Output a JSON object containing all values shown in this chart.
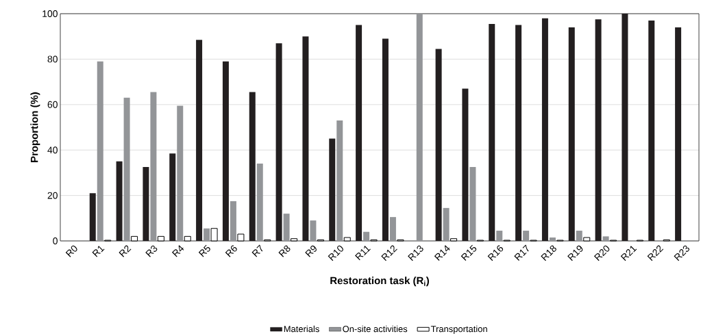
{
  "chart_data": {
    "type": "bar",
    "xlabel": "Restoration task (R$_{i}$)",
    "ylabel": "Proportion (%)",
    "categories": [
      "R0",
      "R1",
      "R2",
      "R3",
      "R4",
      "R5",
      "R6",
      "R7",
      "R8",
      "R9",
      "R10",
      "R11",
      "R12",
      "R13",
      "R14",
      "R15",
      "R16",
      "R17",
      "R18",
      "R19",
      "R20",
      "R21",
      "R22",
      "R23"
    ],
    "series": [
      {
        "name": "Materials",
        "color": "#231f20",
        "values": [
          0,
          21,
          35,
          32.5,
          38.5,
          88.5,
          79,
          65.5,
          87,
          90,
          45,
          95,
          89,
          0,
          84.5,
          67,
          95.5,
          95,
          98,
          94,
          97.5,
          100,
          97,
          94
        ]
      },
      {
        "name": "On-site activities",
        "color": "#939598",
        "values": [
          0,
          79,
          63,
          65.5,
          59.5,
          5.5,
          17.5,
          34,
          12,
          9,
          53,
          4,
          10.5,
          100,
          14.5,
          32.5,
          4.5,
          4.5,
          1.5,
          4.5,
          2,
          0,
          0,
          0
        ]
      },
      {
        "name": "Transportation",
        "color": "#ffffff",
        "values": [
          null,
          0.3,
          2,
          2,
          2,
          5.5,
          3,
          0.5,
          1,
          0.5,
          1.5,
          0.5,
          0.5,
          null,
          1,
          0.3,
          0.3,
          0.3,
          0.3,
          1.5,
          0.3,
          0.3,
          0.5,
          null
        ]
      }
    ],
    "ylim": [
      0,
      100
    ],
    "yticks": [
      0,
      20,
      40,
      60,
      80,
      100
    ],
    "grid": "y",
    "legend": "bottom"
  }
}
